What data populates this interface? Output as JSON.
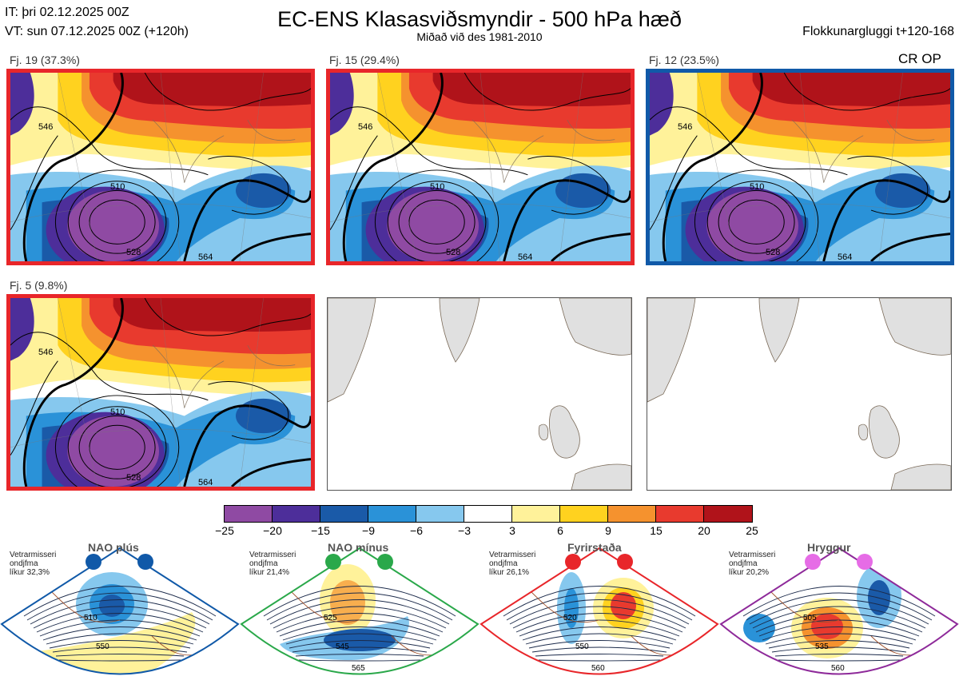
{
  "header": {
    "it_line": "IT: þri 02.12.2025 00Z",
    "vt_line": "VT: sun 07.12.2025 00Z  (+120h)",
    "title": "EC-ENS Klasasviðsmyndir - 500 hPa hæð",
    "subtitle": "Miðað við des 1981-2010",
    "window": "Flokkunargluggi t+120-168"
  },
  "panels": [
    {
      "label": "Fj. 19 (37.3%)",
      "border": "#e8262a",
      "contours": [
        "510",
        "528",
        "546",
        "564"
      ]
    },
    {
      "label": "Fj. 15 (29.4%)",
      "border": "#e8262a",
      "contours": [
        "510",
        "528",
        "546",
        "564"
      ]
    },
    {
      "label": "Fj. 12 (23.5%)",
      "border": "#1059a8",
      "tag": "CR OP",
      "contours": [
        "510",
        "528",
        "546",
        "564"
      ]
    },
    {
      "label": "Fj. 5 (9.8%)",
      "border": "#e8262a",
      "contours": [
        "510",
        "528",
        "546",
        "564"
      ]
    }
  ],
  "colorbar": {
    "colors": [
      "#8f4aa3",
      "#4d2e9a",
      "#1a5aa8",
      "#2a92d8",
      "#86c8ee",
      "#ffffff",
      "#fff29a",
      "#ffd21f",
      "#f5922e",
      "#e83a2e",
      "#b0131a"
    ],
    "ticks": [
      "−25",
      "−20",
      "−15",
      "−9",
      "−6",
      "−3",
      "3",
      "6",
      "9",
      "15",
      "20",
      "25"
    ]
  },
  "regimes": [
    {
      "title": "NAO plús",
      "stat_lines": [
        "Vetrarmisseri",
        "ondjfma",
        "líkur 32,3%"
      ],
      "color": "#1059a8",
      "contours": [
        "510",
        "550"
      ]
    },
    {
      "title": "NAO mínus",
      "stat_lines": [
        "Vetrarmisseri",
        "ondjfma",
        "líkur 21,4%"
      ],
      "color": "#2aa84a",
      "contours": [
        "525",
        "545",
        "565"
      ]
    },
    {
      "title": "Fyrirstaða",
      "stat_lines": [
        "Vetrarmisseri",
        "ondjfma",
        "líkur 26,1%"
      ],
      "color": "#e8262a",
      "contours": [
        "520",
        "550",
        "560"
      ]
    },
    {
      "title": "Hryggur",
      "stat_lines": [
        "Vetrarmisseri",
        "ondjfma",
        "líkur 20,2%"
      ],
      "color": "#8e2a9a",
      "contours": [
        "505",
        "535",
        "560"
      ]
    }
  ]
}
